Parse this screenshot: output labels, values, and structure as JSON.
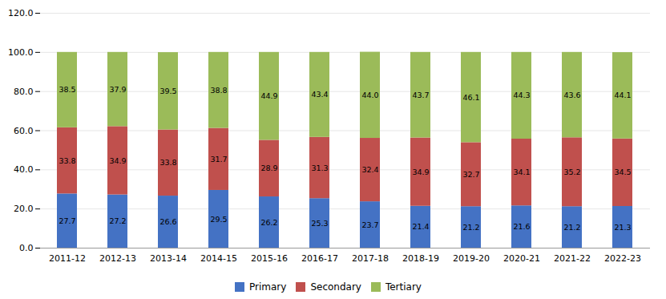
{
  "chart_data": {
    "type": "bar",
    "stacked": true,
    "categories": [
      "2011-12",
      "2012-13",
      "2013-14",
      "2014-15",
      "2015-16",
      "2016-17",
      "2017-18",
      "2018-19",
      "2019-20",
      "2020-21",
      "2021-22",
      "2022-23"
    ],
    "series": [
      {
        "name": "Primary",
        "color": "#4472C4",
        "values": [
          27.7,
          27.2,
          26.6,
          29.5,
          26.2,
          25.3,
          23.7,
          21.4,
          21.2,
          21.6,
          21.2,
          21.3
        ],
        "value_labels": [
          "27.7",
          "27.2",
          "26.6",
          "29.5",
          "26.2",
          "25.3",
          "23.7",
          "21.4",
          "21.2",
          "21.6",
          "21.2",
          "21.3"
        ]
      },
      {
        "name": "Secondary",
        "color": "#C0504D",
        "values": [
          33.8,
          34.9,
          33.8,
          31.7,
          28.9,
          31.3,
          32.4,
          34.9,
          32.7,
          34.1,
          35.2,
          34.5
        ],
        "value_labels": [
          "33.8",
          "34.9",
          "33.8",
          "31.7",
          "28.9",
          "31.3",
          "32.4",
          "34.9",
          "32.7",
          "34.1",
          "35.2",
          "34.5"
        ]
      },
      {
        "name": "Tertiary",
        "color": "#9BBB59",
        "values": [
          38.5,
          37.9,
          39.5,
          38.8,
          44.9,
          43.4,
          44.0,
          43.7,
          46.1,
          44.3,
          43.6,
          44.1
        ],
        "value_labels": [
          "38.5",
          "37.9",
          "39.5",
          "38.8",
          "44.9",
          "43.4",
          "44.0",
          "43.7",
          "46.1",
          "44.3",
          "43.6",
          "44.1"
        ]
      }
    ],
    "ylim": [
      0,
      120
    ],
    "yticks": [
      {
        "value": 0,
        "label": "0.0"
      },
      {
        "value": 20,
        "label": "20.0"
      },
      {
        "value": 40,
        "label": "40.0"
      },
      {
        "value": 60,
        "label": "60.0"
      },
      {
        "value": 80,
        "label": "80.0"
      },
      {
        "value": 100,
        "label": "100.0"
      },
      {
        "value": 120,
        "label": "120.0"
      }
    ],
    "grid": true,
    "data_labels": true,
    "legend": "bottom"
  }
}
